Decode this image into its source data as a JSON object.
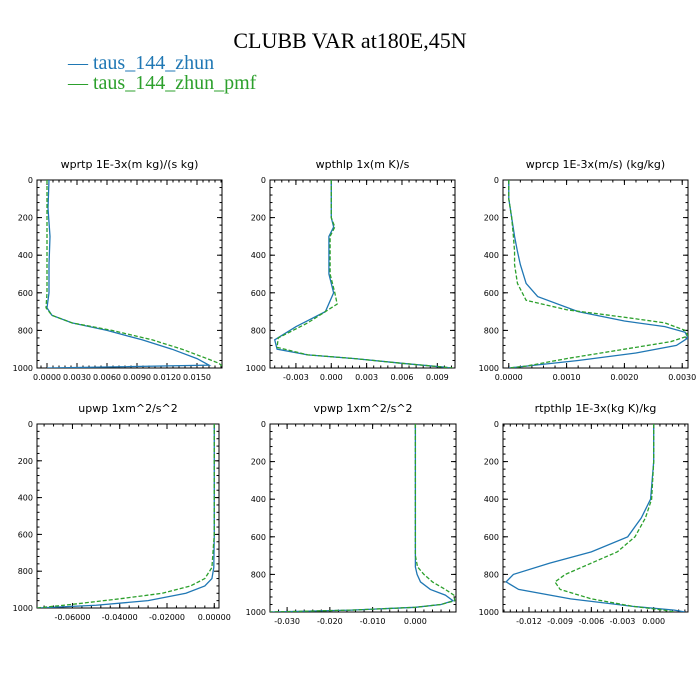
{
  "figure": {
    "title": "CLUBB VAR at180E,45N",
    "legend": [
      {
        "label": "— taus_144_zhun",
        "color": "#1f77b4"
      },
      {
        "label": "— taus_144_zhun_pmf",
        "color": "#2ca02c"
      }
    ]
  },
  "chart_data": [
    {
      "type": "line",
      "title": "wprtp  1E-3x(m kg)/(s kg)",
      "xlim": [
        -0.001,
        0.0175
      ],
      "ylim": [
        1000,
        0
      ],
      "xticks": [
        "0.0000",
        "0.0030",
        "0.0060",
        "0.0090",
        "0.0120",
        "0.0150"
      ],
      "xtick_values": [
        0,
        0.003,
        0.006,
        0.009,
        0.012,
        0.015
      ],
      "yticks": [
        "0",
        "200",
        "400",
        "600",
        "800",
        "1000"
      ],
      "ytick_values": [
        0,
        200,
        400,
        600,
        800,
        1000
      ],
      "series": [
        {
          "name": "taus_144_zhun",
          "color": "#1f77b4",
          "dash": "",
          "x": [
            0.0002,
            0.0001,
            0.0003,
            0.0002,
            0.0002,
            0.0,
            0.0005,
            0.0025,
            0.006,
            0.0095,
            0.0125,
            0.015,
            0.0162,
            0.0
          ],
          "y": [
            0,
            150,
            300,
            450,
            600,
            680,
            720,
            760,
            800,
            850,
            900,
            950,
            985,
            1000
          ]
        },
        {
          "name": "taus_144_zhun_pmf",
          "color": "#2ca02c",
          "dash": "4,2",
          "x": [
            0.0,
            0.0,
            0.0,
            0.0,
            0.0,
            -0.0001,
            0.0005,
            0.0025,
            0.0065,
            0.0105,
            0.0135,
            0.016,
            0.0172,
            0.0175
          ],
          "y": [
            0,
            150,
            300,
            450,
            600,
            680,
            720,
            760,
            800,
            850,
            900,
            950,
            975,
            990
          ]
        }
      ]
    },
    {
      "type": "line",
      "title": "wpthlp  1x(m K)/s",
      "xlim": [
        -0.0052,
        0.0105
      ],
      "ylim": [
        1000,
        0
      ],
      "xticks": [
        "-0.003",
        "0.000",
        "0.003",
        "0.006",
        "0.009"
      ],
      "xtick_values": [
        -0.003,
        0,
        0.003,
        0.006,
        0.009
      ],
      "yticks": [
        "0",
        "200",
        "400",
        "600",
        "800",
        "1000"
      ],
      "ytick_values": [
        0,
        200,
        400,
        600,
        800,
        1000
      ],
      "series": [
        {
          "name": "taus_144_zhun",
          "color": "#1f77b4",
          "dash": "",
          "x": [
            0.0,
            0.0,
            0.0,
            0.0002,
            -0.0002,
            -0.0002,
            -0.0002,
            0.0002,
            -0.0005,
            -0.003,
            -0.0048,
            -0.0046,
            -0.002,
            0.002,
            0.006,
            0.0095,
            0.0102
          ],
          "y": [
            0,
            100,
            200,
            250,
            300,
            400,
            500,
            600,
            700,
            780,
            850,
            900,
            930,
            950,
            975,
            995,
            1000
          ]
        },
        {
          "name": "taus_144_zhun_pmf",
          "color": "#2ca02c",
          "dash": "4,2",
          "x": [
            0.0,
            0.0,
            0.0,
            0.0003,
            -0.0001,
            -0.0001,
            -0.0001,
            0.0003,
            0.0005,
            -0.002,
            -0.0045,
            -0.0046,
            -0.002,
            0.002,
            0.006,
            0.0095,
            0.0103
          ],
          "y": [
            0,
            100,
            200,
            250,
            300,
            400,
            500,
            600,
            660,
            760,
            840,
            890,
            930,
            950,
            975,
            995,
            1000
          ]
        }
      ]
    },
    {
      "type": "line",
      "title": "wprcp  1E-3x(m/s) (kg/kg)",
      "xlim": [
        -0.0001,
        0.0031
      ],
      "ylim": [
        1000,
        0
      ],
      "xticks": [
        "0.0000",
        "0.0010",
        "0.0020",
        "0.0030"
      ],
      "xtick_values": [
        0,
        0.001,
        0.002,
        0.003
      ],
      "yticks": [
        "0",
        "200",
        "400",
        "600",
        "800",
        "1000"
      ],
      "ytick_values": [
        0,
        200,
        400,
        600,
        800,
        1000
      ],
      "series": [
        {
          "name": "taus_144_zhun",
          "color": "#1f77b4",
          "dash": "",
          "x": [
            0.0,
            0.0,
            5e-05,
            0.0001,
            0.00015,
            0.0002,
            0.0003,
            0.0005,
            0.0012,
            0.002,
            0.0027,
            0.00305,
            0.0031,
            0.0029,
            0.0022,
            0.0012,
            0.0003,
            0.0
          ],
          "y": [
            0,
            100,
            200,
            300,
            380,
            450,
            550,
            620,
            700,
            750,
            780,
            810,
            840,
            880,
            920,
            960,
            990,
            1000
          ]
        },
        {
          "name": "taus_144_zhun_pmf",
          "color": "#2ca02c",
          "dash": "4,2",
          "x": [
            0.0,
            0.0,
            5e-05,
            8e-05,
            0.0001,
            0.0001,
            0.00015,
            0.0003,
            0.001,
            0.002,
            0.0027,
            0.00305,
            0.0031,
            0.0028,
            0.002,
            0.001,
            0.0003,
            0.0
          ],
          "y": [
            0,
            100,
            200,
            300,
            380,
            450,
            550,
            640,
            690,
            730,
            760,
            800,
            830,
            860,
            900,
            950,
            990,
            1000
          ]
        }
      ]
    },
    {
      "type": "line",
      "title": "upwp  1xm^2/s^2",
      "xlim": [
        -0.075,
        0.002
      ],
      "ylim": [
        1000,
        0
      ],
      "xticks": [
        "-0.06000",
        "-0.04000",
        "-0.02000",
        "0.00000"
      ],
      "xtick_values": [
        -0.06,
        -0.04,
        -0.02,
        0
      ],
      "yticks": [
        "0",
        "200",
        "400",
        "600",
        "800",
        "1000"
      ],
      "ytick_values": [
        0,
        200,
        400,
        600,
        800,
        1000
      ],
      "series": [
        {
          "name": "taus_144_zhun",
          "color": "#1f77b4",
          "dash": "",
          "x": [
            0.0,
            0.0,
            0.0,
            0.0,
            -0.0002,
            -0.001,
            -0.004,
            -0.012,
            -0.028,
            -0.05,
            -0.075
          ],
          "y": [
            0,
            200,
            400,
            600,
            780,
            840,
            880,
            920,
            960,
            985,
            1000
          ]
        },
        {
          "name": "taus_144_zhun_pmf",
          "color": "#2ca02c",
          "dash": "4,2",
          "x": [
            0.0,
            0.0,
            0.0,
            0.0,
            -0.001,
            -0.004,
            -0.01,
            -0.022,
            -0.04,
            -0.06,
            -0.075
          ],
          "y": [
            0,
            200,
            400,
            600,
            780,
            840,
            880,
            920,
            950,
            980,
            1000
          ]
        }
      ]
    },
    {
      "type": "line",
      "title": "vpwp  1xm^2/s^2",
      "xlim": [
        -0.034,
        0.0095
      ],
      "ylim": [
        1000,
        0
      ],
      "xticks": [
        "-0.030",
        "-0.020",
        "-0.010",
        "0.000"
      ],
      "xtick_values": [
        -0.03,
        -0.02,
        -0.01,
        0
      ],
      "yticks": [
        "0",
        "200",
        "400",
        "600",
        "800",
        "1000"
      ],
      "ytick_values": [
        0,
        200,
        400,
        600,
        800,
        1000
      ],
      "series": [
        {
          "name": "taus_144_zhun",
          "color": "#1f77b4",
          "dash": "",
          "x": [
            0.0,
            0.0,
            0.0,
            0.0,
            0.0,
            0.0004,
            0.0012,
            0.0035,
            0.007,
            0.0088,
            0.006,
            0.0,
            -0.015,
            -0.034
          ],
          "y": [
            0,
            300,
            500,
            700,
            760,
            800,
            840,
            880,
            910,
            940,
            960,
            975,
            990,
            1000
          ]
        },
        {
          "name": "taus_144_zhun_pmf",
          "color": "#2ca02c",
          "dash": "4,2",
          "x": [
            0.0,
            0.0,
            0.0,
            0.0,
            0.0005,
            0.002,
            0.004,
            0.007,
            0.009,
            0.0092,
            0.006,
            0.0,
            -0.015,
            -0.034
          ],
          "y": [
            0,
            300,
            500,
            700,
            760,
            800,
            840,
            880,
            910,
            940,
            960,
            975,
            990,
            1000
          ]
        }
      ]
    },
    {
      "type": "line",
      "title": "rtpthlp  1E-3x(kg K)/kg",
      "xlim": [
        -0.0145,
        0.0033
      ],
      "ylim": [
        1000,
        0
      ],
      "xticks": [
        "-0.012",
        "-0.009",
        "-0.006",
        "-0.003",
        "0.000"
      ],
      "xtick_values": [
        -0.012,
        -0.009,
        -0.006,
        -0.003,
        0
      ],
      "yticks": [
        "0",
        "200",
        "400",
        "600",
        "800",
        "1000"
      ],
      "ytick_values": [
        0,
        200,
        400,
        600,
        800,
        1000
      ],
      "series": [
        {
          "name": "taus_144_zhun",
          "color": "#1f77b4",
          "dash": "",
          "x": [
            0.0,
            0.0,
            -0.0003,
            -0.0012,
            -0.0025,
            -0.006,
            -0.01,
            -0.0135,
            -0.0142,
            -0.013,
            -0.008,
            -0.002,
            0.002,
            0.003
          ],
          "y": [
            0,
            200,
            400,
            500,
            600,
            680,
            740,
            800,
            840,
            880,
            930,
            970,
            990,
            1000
          ]
        },
        {
          "name": "taus_144_zhun_pmf",
          "color": "#2ca02c",
          "dash": "4,2",
          "x": [
            0.0,
            0.0,
            -0.0002,
            -0.0008,
            -0.0018,
            -0.0035,
            -0.006,
            -0.0085,
            -0.0095,
            -0.009,
            -0.006,
            -0.002,
            0.001,
            0.002
          ],
          "y": [
            0,
            200,
            400,
            500,
            600,
            680,
            740,
            800,
            840,
            880,
            930,
            970,
            990,
            1000
          ]
        }
      ]
    }
  ]
}
